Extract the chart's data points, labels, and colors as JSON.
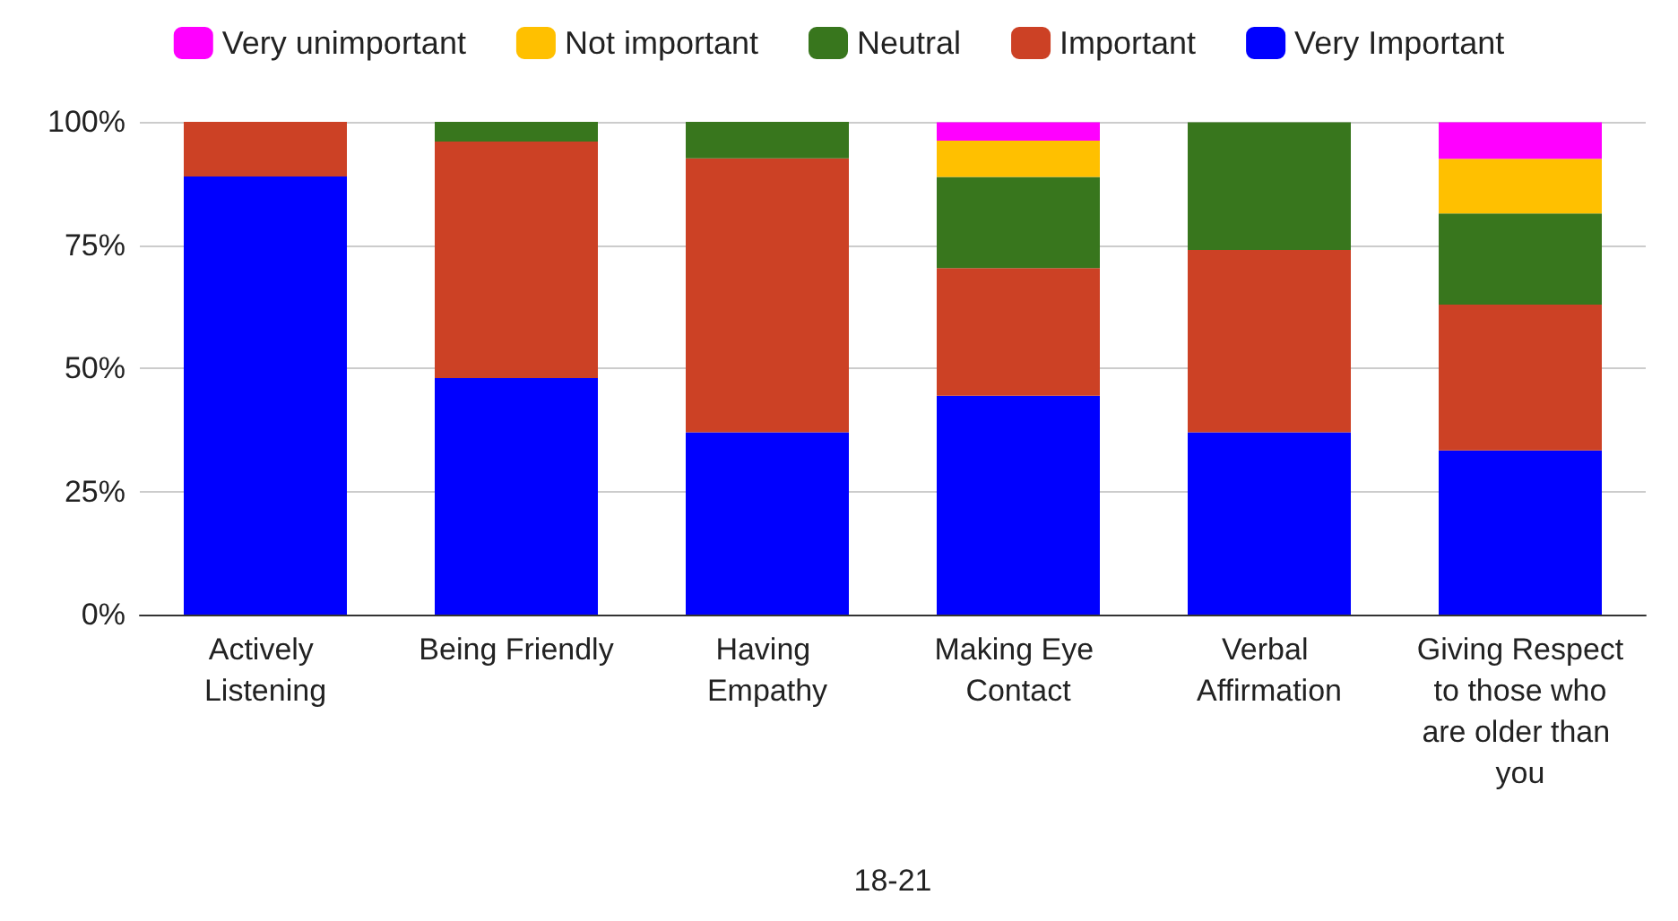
{
  "chart_data": {
    "type": "bar",
    "stacked": true,
    "xlabel": "18-21",
    "categories": [
      "Actively Listening",
      "Being Friendly",
      "Having Empathy",
      "Making Eye Contact",
      "Verbal Affirmation",
      "Giving Respect to those who are older than you"
    ],
    "series": [
      {
        "name": "Very Important",
        "color": "#0000ff",
        "values": [
          88.9,
          48,
          37,
          44.4,
          37,
          33.3
        ]
      },
      {
        "name": "Important",
        "color": "#cc4125",
        "values": [
          11.1,
          48,
          55.6,
          25.9,
          37,
          29.6
        ]
      },
      {
        "name": "Neutral",
        "color": "#38761d",
        "values": [
          0,
          4,
          7.4,
          18.5,
          25.9,
          18.5
        ]
      },
      {
        "name": "Not important",
        "color": "#ffc000",
        "values": [
          0,
          0,
          0,
          7.4,
          0,
          11.1
        ]
      },
      {
        "name": "Very unimportant",
        "color": "#ff00ff",
        "values": [
          0,
          0,
          0,
          3.7,
          0,
          7.4
        ]
      }
    ],
    "ylim": [
      0,
      100
    ],
    "yticks": [
      {
        "value": 0,
        "label": "0%"
      },
      {
        "value": 25,
        "label": "25%"
      },
      {
        "value": 50,
        "label": "50%"
      },
      {
        "value": 75,
        "label": "75%"
      },
      {
        "value": 100,
        "label": "100%"
      }
    ],
    "grid": "y",
    "legend": "top"
  }
}
